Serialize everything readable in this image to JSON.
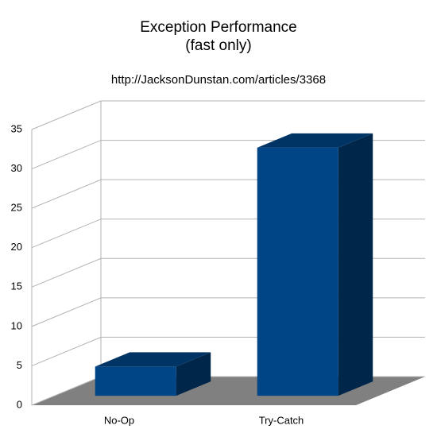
{
  "chart_data": {
    "type": "bar",
    "title": "Exception Performance",
    "subtitle": "(fast only)",
    "annotation": "http://JacksonDunstan.com/articles/3368",
    "categories": [
      "No-Op",
      "Try-Catch"
    ],
    "values": [
      3.7,
      31.5
    ],
    "color": "#004586",
    "ylim": [
      0,
      35
    ],
    "yticks": [
      0,
      5,
      10,
      15,
      20,
      25,
      30,
      35
    ],
    "grid": true
  }
}
